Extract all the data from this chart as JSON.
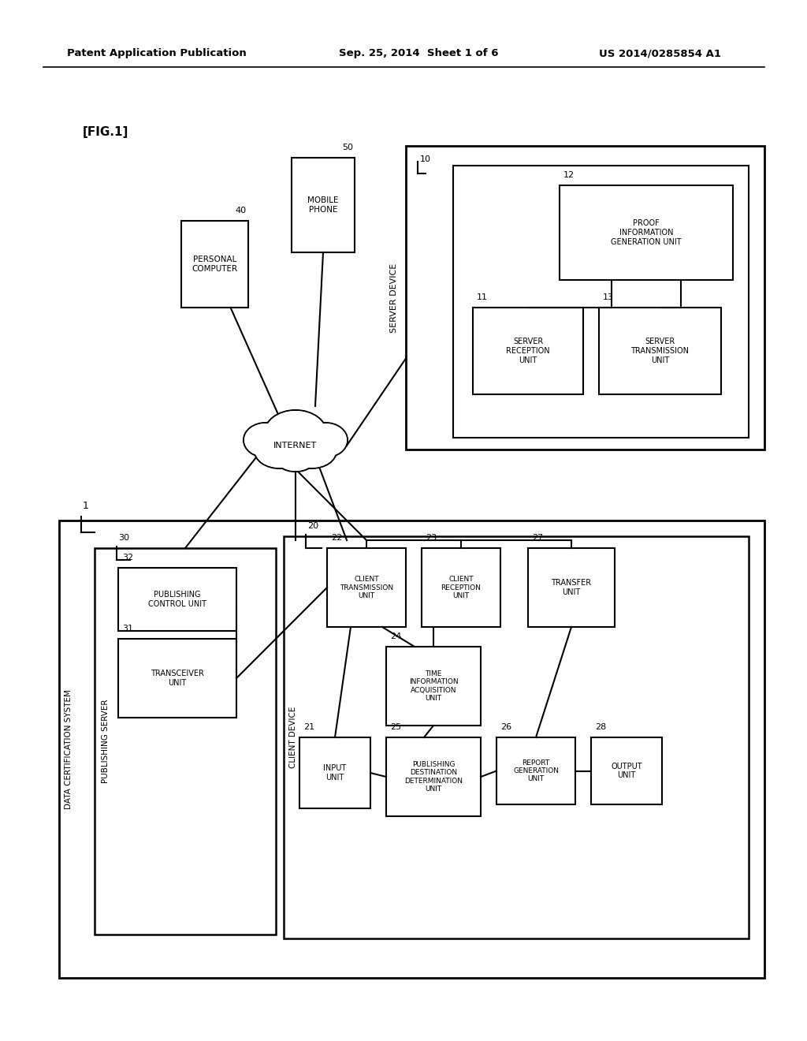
{
  "header_left": "Patent Application Publication",
  "header_center": "Sep. 25, 2014  Sheet 1 of 6",
  "header_right": "US 2014/0285854 A1",
  "fig_label": "[FIG.1]",
  "bg_color": "#ffffff",
  "line_color": "#000000",
  "text_color": "#000000"
}
